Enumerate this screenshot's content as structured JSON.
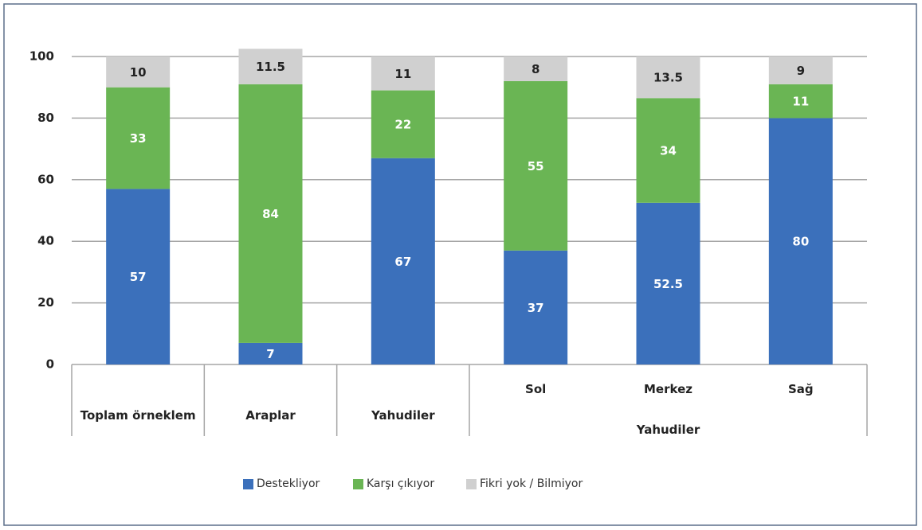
{
  "chart_data": {
    "type": "stacked_bar",
    "categories": [
      "Toplam örneklem",
      "Araplar",
      "Yahudiler",
      "Sol",
      "Merkez",
      "Sağ"
    ],
    "category_groups": [
      {
        "label": "Yahudiler",
        "from": 3,
        "to": 5
      }
    ],
    "series": [
      {
        "name": "Destekliyor",
        "color": "#3b70bb",
        "values": [
          57,
          7,
          67,
          37,
          52.5,
          80
        ]
      },
      {
        "name": "Karşı çıkıyor",
        "color": "#6ab554",
        "values": [
          33,
          84,
          22,
          55,
          34,
          11
        ]
      },
      {
        "name": "Fikri yok / Bilmiyor",
        "color": "#d0d0d0",
        "values": [
          10,
          11.5,
          11,
          8,
          13.5,
          9
        ]
      }
    ],
    "ylim": [
      0,
      100
    ],
    "yticks": [
      0,
      20,
      40,
      60,
      80,
      100
    ],
    "grid": true,
    "legend": "bottom"
  }
}
